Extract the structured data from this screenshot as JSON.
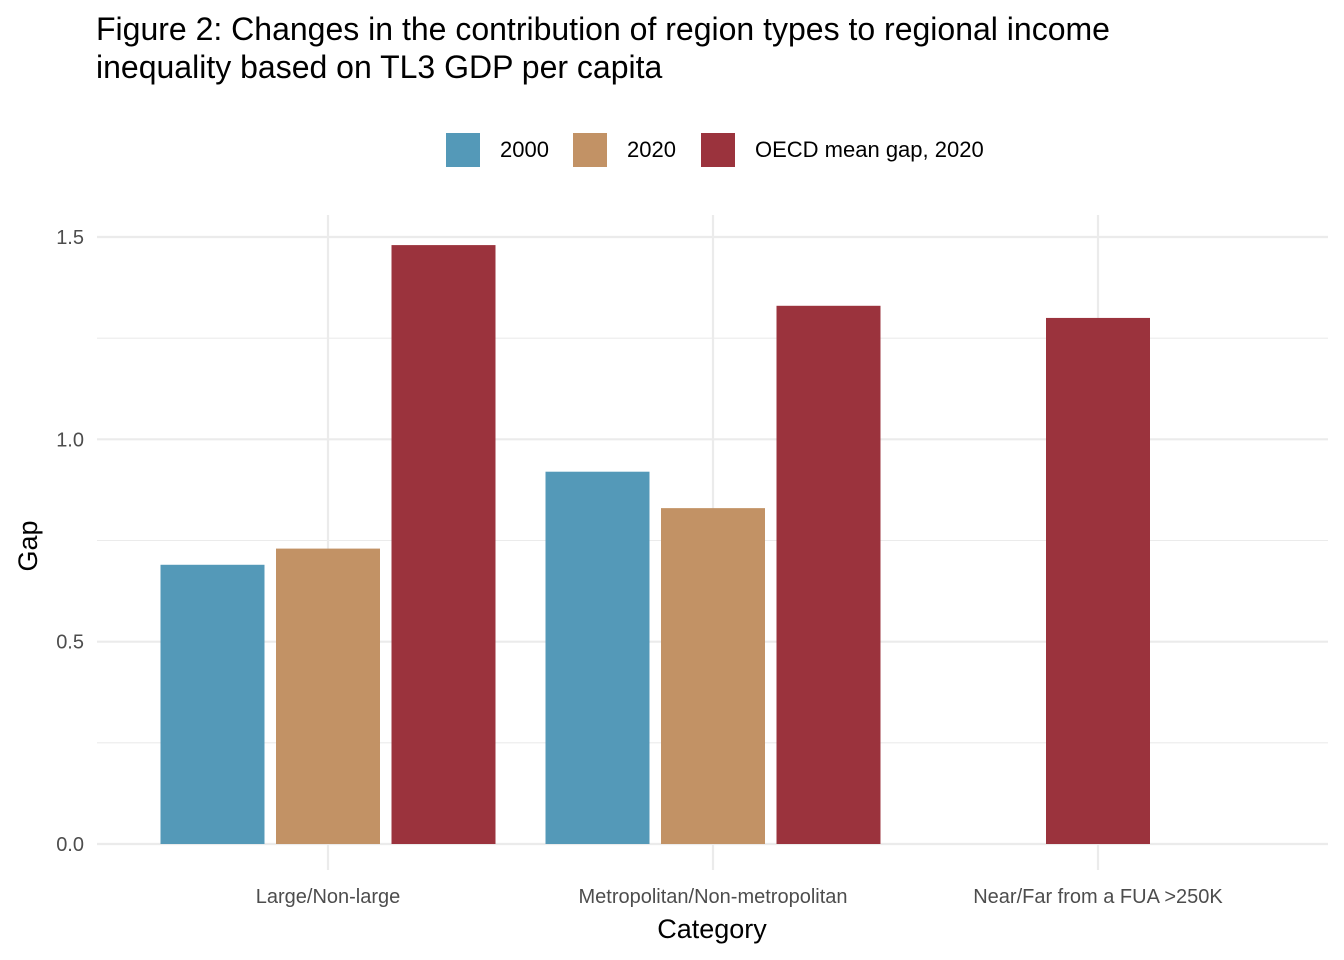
{
  "title_line1": "Figure 2: Changes in the contribution of region types to regional income",
  "title_line2": "inequality based on TL3 GDP per capita",
  "chart_data": {
    "type": "bar",
    "title": "Figure 2: Changes in the contribution of region types to regional income inequality based on TL3 GDP per capita",
    "xlabel": "Category",
    "ylabel": "Gap",
    "ylim": [
      0,
      1.5
    ],
    "yticks": [
      "0.0",
      "0.5",
      "1.0",
      "1.5"
    ],
    "ytick_values": [
      0,
      0.5,
      1.0,
      1.5
    ],
    "grid": true,
    "legend_position": "top",
    "categories": [
      "Large/Non-large",
      "Metropolitan/Non-metropolitan",
      "Near/Far from a FUA >250K"
    ],
    "series": [
      {
        "name": "2000",
        "color": "#5499b8",
        "values": [
          0.69,
          0.92,
          null
        ]
      },
      {
        "name": "2020",
        "color": "#c29265",
        "values": [
          0.73,
          0.83,
          null
        ]
      },
      {
        "name": "OECD mean gap, 2020",
        "color": "#9b333d",
        "values": [
          1.48,
          1.33,
          1.3
        ]
      }
    ]
  }
}
